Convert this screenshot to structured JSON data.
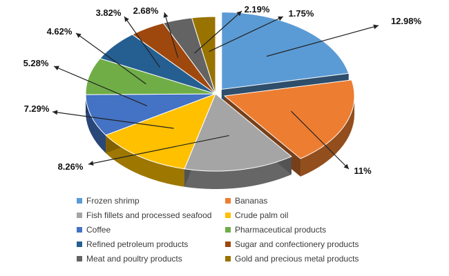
{
  "chart_data": {
    "type": "pie",
    "style": "3d-exploded",
    "legend_position": "bottom",
    "slices": [
      {
        "label": "Frozen shrimp",
        "value": 12.98,
        "value_label": "12.98%",
        "color": "#5B9BD5"
      },
      {
        "label": "Bananas",
        "value": 11,
        "value_label": "11%",
        "color": "#ED7D31"
      },
      {
        "label": "Fish fillets and processed seafood",
        "value": 8.26,
        "value_label": "8.26%",
        "color": "#A5A5A5"
      },
      {
        "label": "Crude palm oil",
        "value": 7.29,
        "value_label": "7.29%",
        "color": "#FFC000"
      },
      {
        "label": "Coffee",
        "value": 5.28,
        "value_label": "5.28%",
        "color": "#4472C4"
      },
      {
        "label": "Pharmaceutical products",
        "value": 4.62,
        "value_label": "4.62%",
        "color": "#70AD47"
      },
      {
        "label": "Refined petroleum products",
        "value": 3.82,
        "value_label": "3.82%",
        "color": "#255E91"
      },
      {
        "label": "Sugar and confectionery products",
        "value": 2.68,
        "value_label": "2.68%",
        "color": "#9E480E"
      },
      {
        "label": "Meat and poultry products",
        "value": 2.19,
        "value_label": "2.19%",
        "color": "#636363"
      },
      {
        "label": "Gold and precious metal products",
        "value": 1.75,
        "value_label": "1.75%",
        "color": "#997300"
      }
    ]
  }
}
